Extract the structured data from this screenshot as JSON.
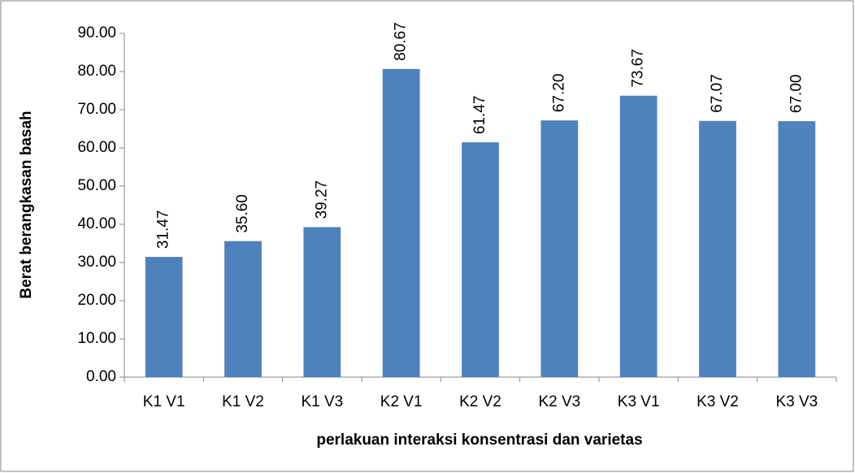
{
  "chart_data": {
    "type": "bar",
    "x_label": "perlakuan interaksi konsentrasi dan varietas",
    "y_label": "Berat berangkasan basah",
    "categories": [
      "K1 V1",
      "K1 V2",
      "K1 V3",
      "K2 V1",
      "K2 V2",
      "K2 V3",
      "K3 V1",
      "K3 V2",
      "K3 V3"
    ],
    "values": [
      31.47,
      35.6,
      39.27,
      80.67,
      61.47,
      67.2,
      73.67,
      67.07,
      67.0
    ],
    "value_labels": [
      "31.47",
      "35.60",
      "39.27",
      "80.67",
      "61.47",
      "67.20",
      "73.67",
      "67.07",
      "67.00"
    ],
    "color": "#4f81bd",
    "ylim": [
      0,
      90
    ],
    "yticks": [
      {
        "value": 0,
        "label": "0.00"
      },
      {
        "value": 10,
        "label": "10.00"
      },
      {
        "value": 20,
        "label": "20.00"
      },
      {
        "value": 30,
        "label": "30.00"
      },
      {
        "value": 40,
        "label": "40.00"
      },
      {
        "value": 50,
        "label": "50.00"
      },
      {
        "value": 60,
        "label": "60.00"
      },
      {
        "value": 70,
        "label": "70.00"
      },
      {
        "value": 80,
        "label": "80.00"
      },
      {
        "value": 90,
        "label": "90.00"
      }
    ],
    "grid": false
  }
}
